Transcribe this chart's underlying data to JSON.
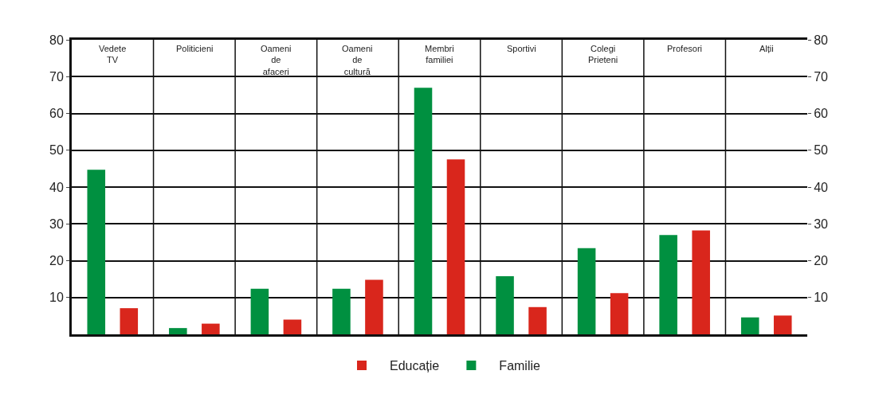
{
  "chart_data": {
    "type": "bar",
    "categories": [
      "Vedete\nTV",
      "Politicieni",
      "Oameni\nde\nafaceri",
      "Oameni\nde\ncultură",
      "Membri\nfamiliei",
      "Sportivi",
      "Colegi\nPrieteni",
      "Profesori",
      "Alții"
    ],
    "series": [
      {
        "name": "Familie",
        "color": "#009040",
        "values": [
          44.7,
          1.7,
          12.4,
          12.4,
          67,
          15.8,
          23.4,
          27,
          4.6
        ]
      },
      {
        "name": "Educație",
        "color": "#d9261c",
        "values": [
          7.1,
          2.9,
          4,
          14.8,
          47.5,
          7.4,
          11.2,
          28.2,
          5.1
        ]
      }
    ],
    "ylim": [
      0,
      80
    ],
    "yticks": [
      10,
      20,
      30,
      40,
      50,
      60,
      70,
      80
    ],
    "y2lim": [
      0,
      80
    ],
    "y2ticks": [
      10,
      20,
      30,
      40,
      50,
      60,
      70,
      80
    ],
    "grid": true,
    "legend": "bottom"
  }
}
